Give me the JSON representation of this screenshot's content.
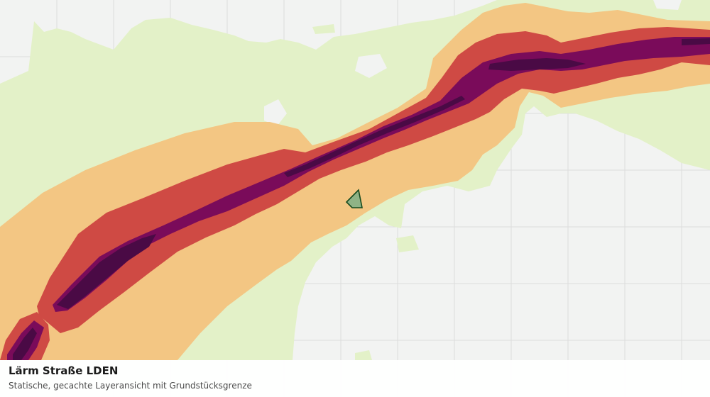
{
  "layer": {
    "title": "Lärm Straße LDEN",
    "subtitle": "Statische, gecachte Layeransicht mit Grundstücksgrenze"
  },
  "colors": {
    "background": "#f2f3f2",
    "grid": "#dcdcdc",
    "noise_lowest": "#e3f1c8",
    "noise_low": "#f3c683",
    "noise_medium": "#cf4a44",
    "noise_high": "#7a0b5a",
    "noise_highest": "#4a0a45",
    "parcel_fill": "#8fb386",
    "parcel_stroke": "#174a1e"
  },
  "legend_classes": [
    {
      "name": "noise-band-lowest",
      "color": "#e3f1c8"
    },
    {
      "name": "noise-band-low",
      "color": "#f3c683"
    },
    {
      "name": "noise-band-medium",
      "color": "#cf4a44"
    },
    {
      "name": "noise-band-high",
      "color": "#7a0b5a"
    },
    {
      "name": "noise-band-highest",
      "color": "#4a0a45"
    }
  ]
}
